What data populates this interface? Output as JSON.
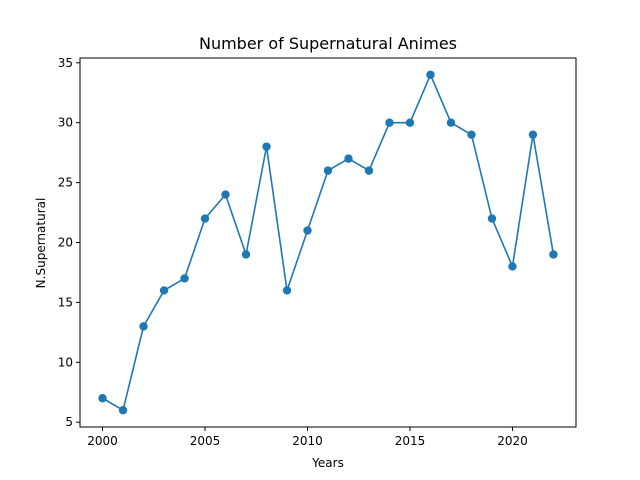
{
  "chart_data": {
    "type": "line",
    "title": "Number of Supernatural Animes",
    "xlabel": "Years",
    "ylabel": "N.Supernatural",
    "x": [
      2000,
      2001,
      2002,
      2003,
      2004,
      2005,
      2006,
      2007,
      2008,
      2009,
      2010,
      2011,
      2012,
      2013,
      2014,
      2015,
      2016,
      2017,
      2018,
      2019,
      2020,
      2021,
      2022
    ],
    "series": [
      {
        "values": [
          7,
          6,
          13,
          16,
          17,
          22,
          24,
          19,
          28,
          16,
          21,
          26,
          27,
          26,
          30,
          30,
          34,
          30,
          29,
          22,
          18,
          29,
          19
        ],
        "color": "#1f77b4",
        "marker": "circle"
      }
    ],
    "xlim": [
      1998.9,
      2023.1
    ],
    "ylim": [
      4.6,
      35.4
    ],
    "xticks": [
      2000,
      2005,
      2010,
      2015,
      2020
    ],
    "yticks": [
      5,
      10,
      15,
      20,
      25,
      30,
      35
    ],
    "grid": false,
    "legend": "none"
  }
}
